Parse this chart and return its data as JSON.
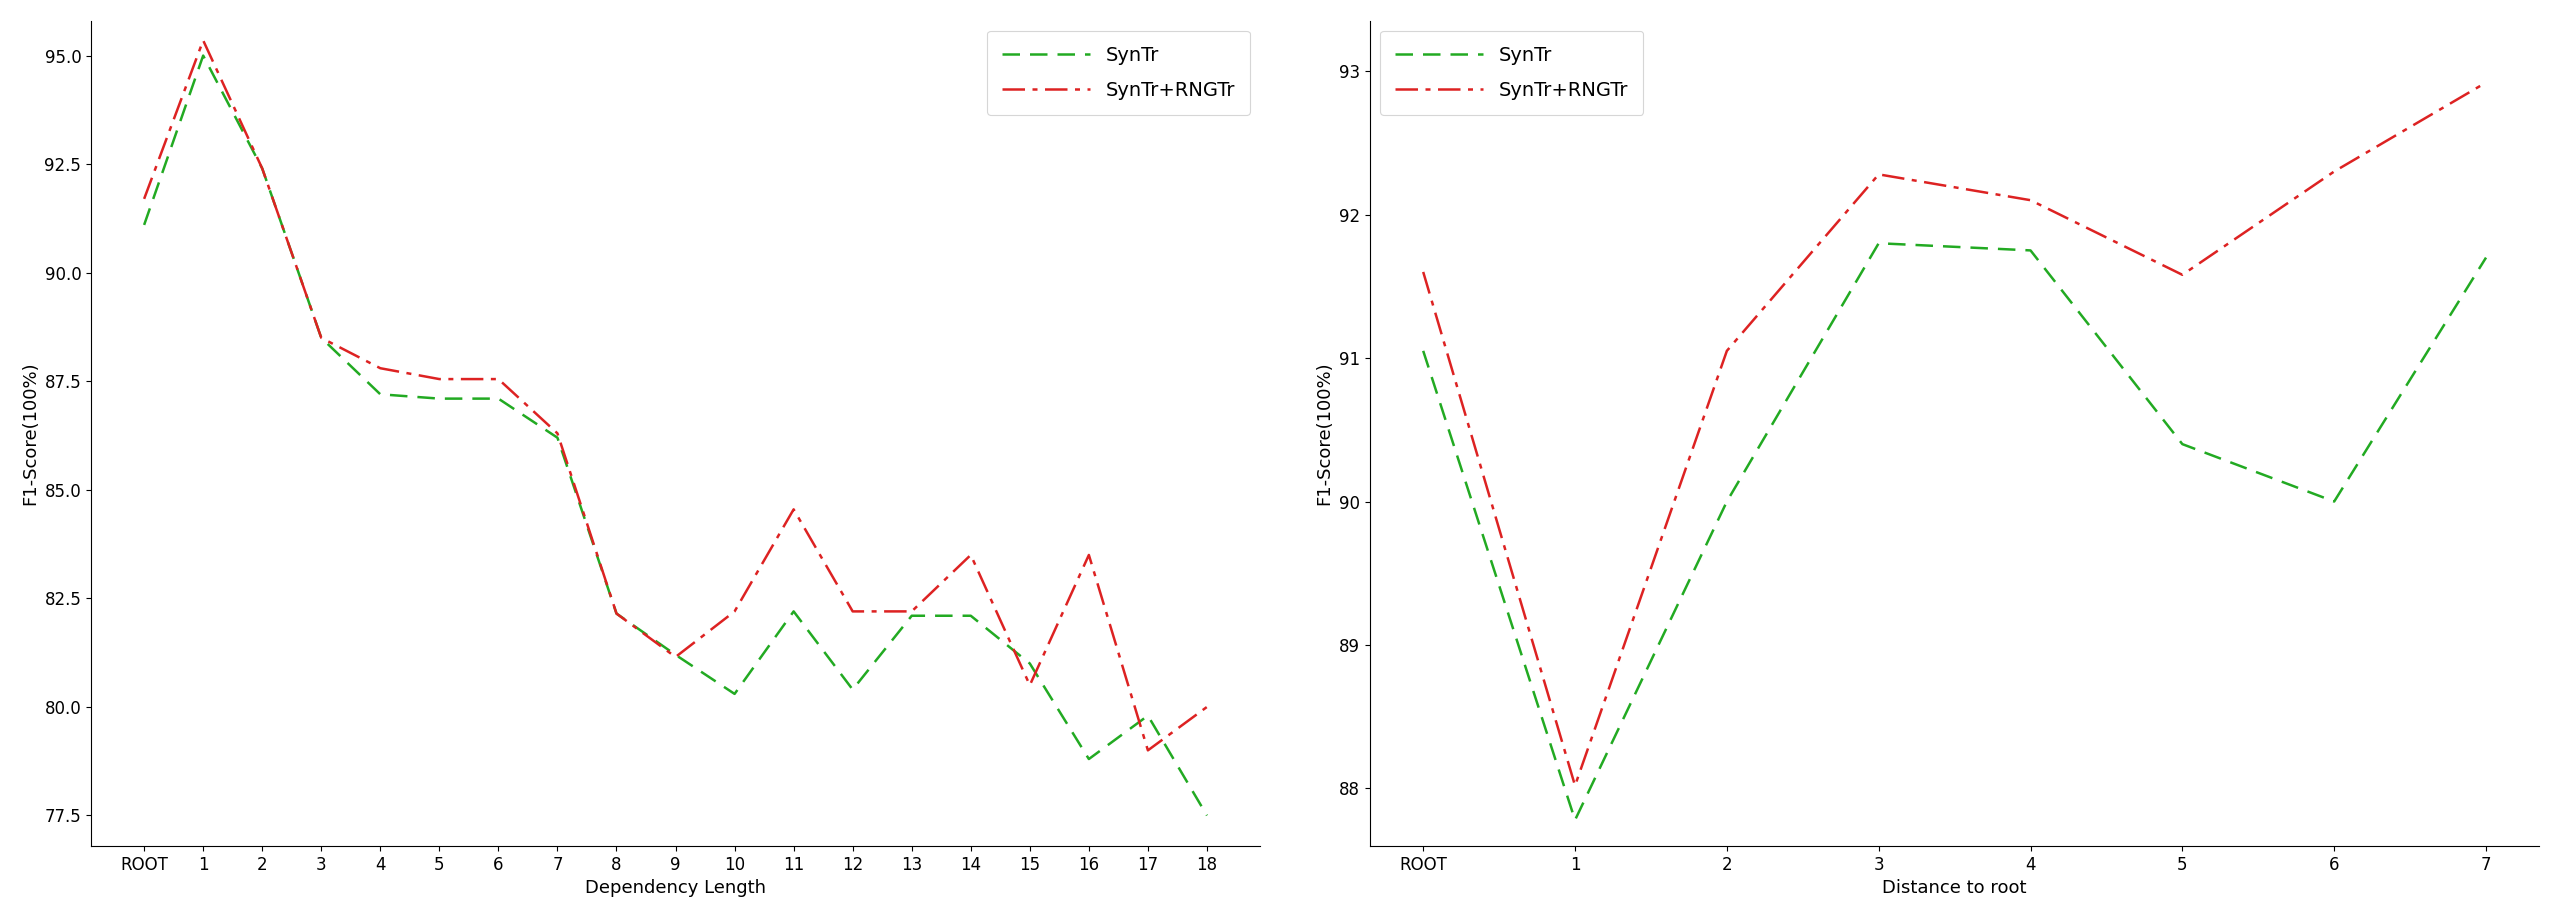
{
  "left": {
    "xlabel": "Dependency Length",
    "ylabel": "F1-Score(100%)",
    "xtick_labels": [
      "ROOT",
      "1",
      "2",
      "3",
      "4",
      "5",
      "6",
      "7",
      "8",
      "9",
      "10",
      "11",
      "12",
      "13",
      "14",
      "15",
      "16",
      "17",
      "18"
    ],
    "ylim": [
      76.8,
      95.8
    ],
    "yticks": [
      77.5,
      80.0,
      82.5,
      85.0,
      87.5,
      90.0,
      92.5,
      95.0
    ],
    "syntr_values": [
      91.1,
      95.0,
      92.4,
      88.5,
      87.2,
      87.1,
      87.1,
      86.2,
      82.15,
      81.2,
      80.3,
      82.2,
      80.4,
      82.1,
      82.1,
      81.0,
      78.8,
      79.8,
      77.5
    ],
    "syntr_rng_values": [
      91.7,
      95.35,
      92.4,
      88.5,
      87.8,
      87.55,
      87.55,
      86.3,
      82.15,
      81.15,
      82.2,
      84.55,
      82.2,
      82.2,
      83.5,
      80.5,
      83.5,
      79.0,
      80.0
    ],
    "syntr_color": "#22aa22",
    "syntr_rng_color": "#dd2222",
    "legend_loc": "upper right"
  },
  "right": {
    "xlabel": "Distance to root",
    "ylabel": "F1-Score(100%)",
    "xtick_labels": [
      "ROOT",
      "1",
      "2",
      "3",
      "4",
      "5",
      "6",
      "7"
    ],
    "ylim": [
      87.6,
      93.35
    ],
    "yticks": [
      88.0,
      89.0,
      90.0,
      91.0,
      92.0,
      93.0
    ],
    "syntr_values": [
      91.05,
      87.78,
      90.0,
      91.8,
      91.75,
      90.4,
      90.0,
      91.7
    ],
    "syntr_rng_values": [
      91.6,
      88.02,
      91.05,
      92.28,
      92.1,
      91.58,
      92.3,
      92.92
    ],
    "syntr_color": "#22aa22",
    "syntr_rng_color": "#dd2222",
    "legend_loc": "upper left"
  }
}
